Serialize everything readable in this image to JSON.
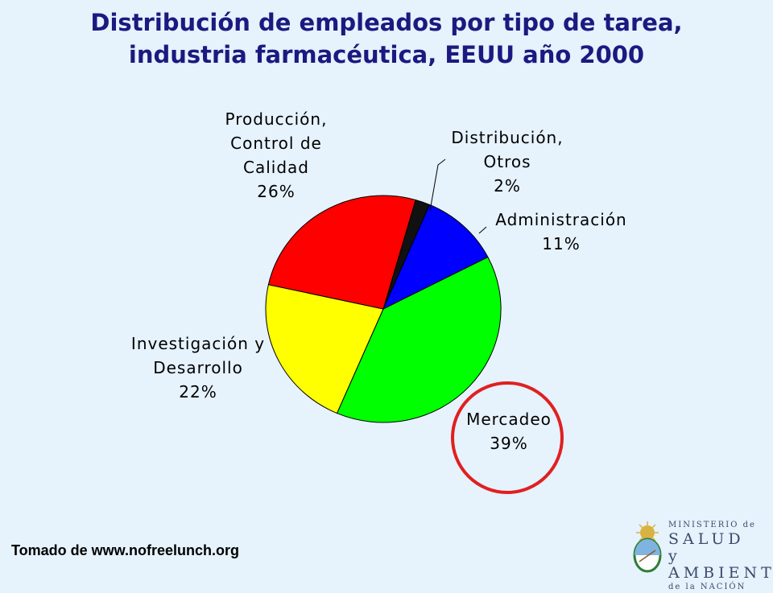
{
  "title": {
    "line1": "Distribución de empleados por tipo de tarea,",
    "line2": "industria farmacéutica, EEUU año 2000"
  },
  "chart_data": {
    "type": "pie",
    "start_angle_deg": 74,
    "slices": [
      {
        "name": "Distribución, Otros",
        "label_lines": [
          "Distribución,",
          "Otros",
          "2%"
        ],
        "value": 2,
        "color": "#111111"
      },
      {
        "name": "Administración",
        "label_lines": [
          "Administración",
          "11%"
        ],
        "value": 11,
        "color": "#0000ff"
      },
      {
        "name": "Mercadeo",
        "label_lines": [
          "Mercadeo",
          "39%"
        ],
        "value": 39,
        "color": "#00ff00"
      },
      {
        "name": "Investigación y Desarrollo",
        "label_lines": [
          "Investigación y",
          "Desarrollo",
          "22%"
        ],
        "value": 22,
        "color": "#ffff00"
      },
      {
        "name": "Producción, Control de Calidad",
        "label_lines": [
          "Producción,",
          "Control de",
          "Calidad",
          "26%"
        ],
        "value": 26,
        "color": "#ff0000"
      }
    ],
    "highlight": {
      "slice": "Mercadeo",
      "color": "#e02020"
    }
  },
  "source": "Tomado de www.nofreelunch.org",
  "logo": {
    "line1": "MINISTERIO de",
    "line2": "SALUD y",
    "line3": "AMBIENTE",
    "line4": "de la NACIÓN"
  }
}
